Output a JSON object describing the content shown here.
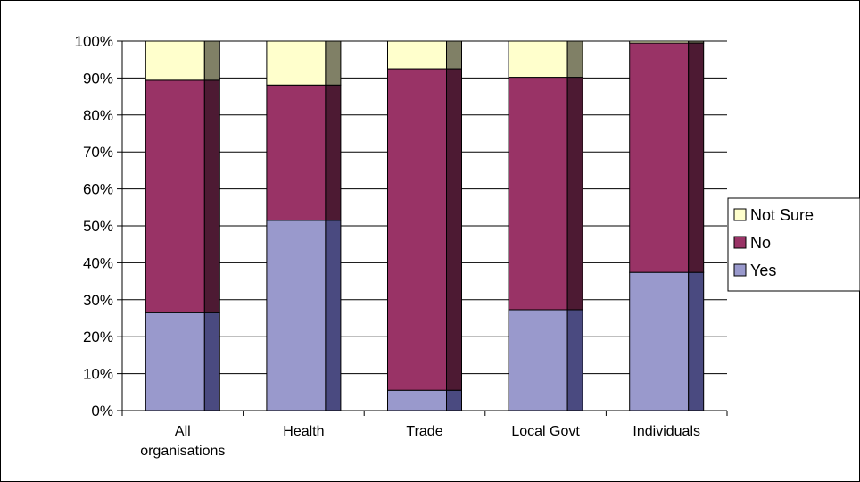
{
  "chart_data": {
    "type": "bar",
    "stacked": true,
    "style": "3d-stacked-100-percent",
    "categories": [
      [
        "All",
        "organisations"
      ],
      [
        "Health"
      ],
      [
        "Trade"
      ],
      [
        "Local Govt"
      ],
      [
        "Individuals"
      ]
    ],
    "y_ticks": [
      "0%",
      "10%",
      "20%",
      "30%",
      "40%",
      "50%",
      "60%",
      "70%",
      "80%",
      "90%",
      "100%"
    ],
    "ylim": [
      0,
      100
    ],
    "grid": true,
    "legend_position": "right",
    "series": [
      {
        "name": "Yes",
        "values": [
          26.5,
          51.5,
          5.5,
          27.3,
          37.4
        ],
        "front": "#9999cc",
        "side": "#4a4a80"
      },
      {
        "name": "No",
        "values": [
          62.9,
          36.6,
          87.0,
          62.9,
          62.1
        ],
        "front": "#993366",
        "side": "#4d1a33"
      },
      {
        "name": "Not Sure",
        "values": [
          10.6,
          11.9,
          7.5,
          9.8,
          0.5
        ],
        "front": "#ffffcc",
        "side": "#808066"
      }
    ],
    "legend_order": [
      "Not Sure",
      "No",
      "Yes"
    ]
  }
}
